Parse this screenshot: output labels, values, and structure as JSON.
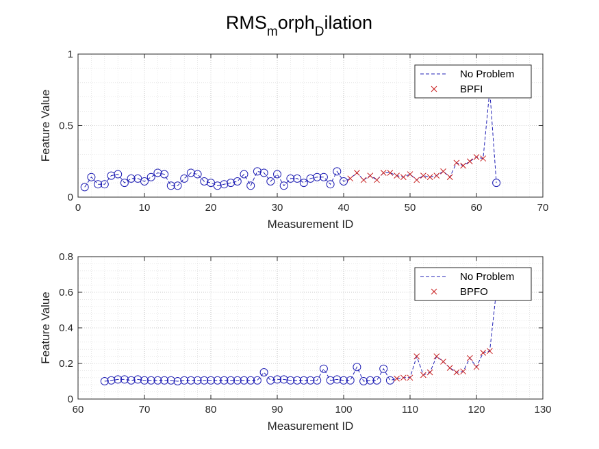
{
  "figure": {
    "title_main": "RMS",
    "title_sub1": "m",
    "title_mid": "orph",
    "title_sub2": "D",
    "title_end": "ilation"
  },
  "chart_data": [
    {
      "type": "line",
      "xlabel": "Measurement ID",
      "ylabel": "Feature Value",
      "xlim": [
        0,
        70
      ],
      "ylim": [
        0,
        1
      ],
      "xticks": [
        "0",
        "10",
        "20",
        "30",
        "40",
        "50",
        "60",
        "70"
      ],
      "yticks": [
        "0",
        "0.5",
        "1"
      ],
      "grid": true,
      "minor_grid": true,
      "legend_position": "top-right",
      "legend": [
        "No Problem",
        "BPFI"
      ],
      "colors": {
        "line": "#1f1fb4",
        "circle": "#1f1fb4",
        "cross": "#c81e1e"
      },
      "x": [
        1,
        2,
        3,
        4,
        5,
        6,
        7,
        8,
        9,
        10,
        11,
        12,
        13,
        14,
        15,
        16,
        17,
        18,
        19,
        20,
        21,
        22,
        23,
        24,
        25,
        26,
        27,
        28,
        29,
        30,
        31,
        32,
        33,
        34,
        35,
        36,
        37,
        38,
        39,
        40,
        41,
        42,
        43,
        44,
        45,
        46,
        47,
        48,
        49,
        50,
        51,
        52,
        53,
        54,
        55,
        56,
        57,
        58,
        59,
        60,
        61,
        62,
        63
      ],
      "y": [
        0.07,
        0.14,
        0.09,
        0.09,
        0.15,
        0.16,
        0.1,
        0.13,
        0.13,
        0.11,
        0.14,
        0.17,
        0.16,
        0.08,
        0.08,
        0.13,
        0.17,
        0.16,
        0.11,
        0.1,
        0.08,
        0.09,
        0.1,
        0.11,
        0.16,
        0.08,
        0.18,
        0.17,
        0.11,
        0.16,
        0.08,
        0.13,
        0.13,
        0.1,
        0.13,
        0.14,
        0.14,
        0.09,
        0.18,
        0.11,
        0.13,
        0.17,
        0.12,
        0.15,
        0.12,
        0.17,
        0.17,
        0.15,
        0.14,
        0.16,
        0.12,
        0.15,
        0.14,
        0.15,
        0.18,
        0.14,
        0.24,
        0.22,
        0.25,
        0.28,
        0.27,
        0.75,
        0.1
      ],
      "circle_markers_x": [
        1,
        2,
        3,
        4,
        5,
        6,
        7,
        8,
        9,
        10,
        11,
        12,
        13,
        14,
        15,
        16,
        17,
        18,
        19,
        20,
        21,
        22,
        23,
        24,
        25,
        26,
        27,
        28,
        29,
        30,
        31,
        32,
        33,
        34,
        35,
        36,
        37,
        38,
        39,
        40,
        63
      ],
      "cross_markers_x": [
        41,
        42,
        43,
        44,
        45,
        46,
        47,
        48,
        49,
        50,
        51,
        52,
        53,
        54,
        55,
        56,
        57,
        58,
        59,
        60,
        61
      ]
    },
    {
      "type": "line",
      "xlabel": "Measurement ID",
      "ylabel": "Feature Value",
      "xlim": [
        60,
        130
      ],
      "ylim": [
        0,
        0.8
      ],
      "xticks": [
        "60",
        "70",
        "80",
        "90",
        "100",
        "110",
        "120",
        "130"
      ],
      "yticks": [
        "0",
        "0.2",
        "0.4",
        "0.6",
        "0.8"
      ],
      "grid": true,
      "minor_grid": true,
      "legend_position": "top-right",
      "legend": [
        "No Problem",
        "BPFO"
      ],
      "colors": {
        "line": "#1f1fb4",
        "circle": "#1f1fb4",
        "cross": "#c81e1e"
      },
      "x": [
        64,
        65,
        66,
        67,
        68,
        69,
        70,
        71,
        72,
        73,
        74,
        75,
        76,
        77,
        78,
        79,
        80,
        81,
        82,
        83,
        84,
        85,
        86,
        87,
        88,
        89,
        90,
        91,
        92,
        93,
        94,
        95,
        96,
        97,
        98,
        99,
        100,
        101,
        102,
        103,
        104,
        105,
        106,
        107,
        108,
        109,
        110,
        111,
        112,
        113,
        114,
        115,
        116,
        117,
        118,
        119,
        120,
        121,
        122,
        123
      ],
      "y": [
        0.1,
        0.105,
        0.11,
        0.11,
        0.105,
        0.11,
        0.105,
        0.105,
        0.105,
        0.105,
        0.105,
        0.1,
        0.105,
        0.105,
        0.105,
        0.105,
        0.105,
        0.105,
        0.105,
        0.105,
        0.105,
        0.105,
        0.105,
        0.105,
        0.15,
        0.105,
        0.11,
        0.11,
        0.105,
        0.105,
        0.105,
        0.105,
        0.105,
        0.17,
        0.105,
        0.11,
        0.105,
        0.105,
        0.18,
        0.1,
        0.105,
        0.105,
        0.17,
        0.105,
        0.115,
        0.12,
        0.12,
        0.24,
        0.135,
        0.15,
        0.24,
        0.21,
        0.175,
        0.15,
        0.155,
        0.23,
        0.18,
        0.26,
        0.27,
        0.61
      ],
      "circle_markers_x": [
        64,
        65,
        66,
        67,
        68,
        69,
        70,
        71,
        72,
        73,
        74,
        75,
        76,
        77,
        78,
        79,
        80,
        81,
        82,
        83,
        84,
        85,
        86,
        87,
        88,
        89,
        90,
        91,
        92,
        93,
        94,
        95,
        96,
        97,
        98,
        99,
        100,
        101,
        102,
        103,
        104,
        105,
        106,
        107
      ],
      "cross_markers_x": [
        108,
        109,
        110,
        111,
        112,
        113,
        114,
        115,
        116,
        117,
        118,
        119,
        120,
        121,
        122
      ]
    }
  ]
}
